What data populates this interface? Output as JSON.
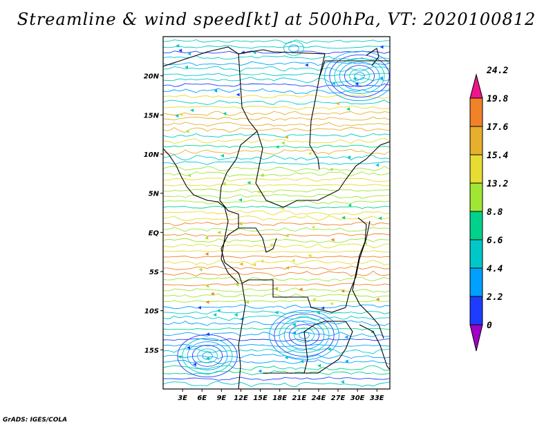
{
  "title": "Streamline & wind speed[kt] at 500hPa, VT: 2020100812",
  "credit": "GrADS: IGES/COLA",
  "map": {
    "lon_min": 0,
    "lon_max": 35,
    "lat_min": -20,
    "lat_max": 25,
    "lat_ticks": [
      {
        "value": 20,
        "label": "20N"
      },
      {
        "value": 15,
        "label": "15N"
      },
      {
        "value": 10,
        "label": "10N"
      },
      {
        "value": 5,
        "label": "5N"
      },
      {
        "value": 0,
        "label": "EQ"
      },
      {
        "value": -5,
        "label": "5S"
      },
      {
        "value": -10,
        "label": "10S"
      },
      {
        "value": -15,
        "label": "15S"
      }
    ],
    "lon_ticks": [
      {
        "value": 3,
        "label": "3E"
      },
      {
        "value": 6,
        "label": "6E"
      },
      {
        "value": 9,
        "label": "9E"
      },
      {
        "value": 12,
        "label": "12E"
      },
      {
        "value": 15,
        "label": "15E"
      },
      {
        "value": 18,
        "label": "18E"
      },
      {
        "value": 21,
        "label": "21E"
      },
      {
        "value": 24,
        "label": "24E"
      },
      {
        "value": 27,
        "label": "27E"
      },
      {
        "value": 30,
        "label": "30E"
      },
      {
        "value": 33,
        "label": "33E"
      }
    ]
  },
  "colorbar": {
    "levels": [
      "0",
      "2.2",
      "4.4",
      "6.6",
      "8.8",
      "13.2",
      "15.4",
      "17.6",
      "19.8",
      "24.2"
    ],
    "colors": [
      "#a000c8",
      "#1e3cff",
      "#00a0ff",
      "#00c8c8",
      "#00d28c",
      "#a0e632",
      "#e6dc32",
      "#e6af2d",
      "#f08228",
      "#f0148c"
    ]
  },
  "chart_data": {
    "type": "heatmap",
    "title": "Streamline & wind speed[kt] at 500hPa, VT: 2020100812",
    "x_ticks": [
      "3E",
      "6E",
      "9E",
      "12E",
      "15E",
      "18E",
      "21E",
      "24E",
      "27E",
      "30E",
      "33E"
    ],
    "y_ticks": [
      "20N",
      "15N",
      "10N",
      "5N",
      "EQ",
      "5S",
      "10S",
      "15S"
    ],
    "colorbar_levels": [
      0,
      2.2,
      4.4,
      6.6,
      8.8,
      13.2,
      15.4,
      17.6,
      19.8,
      24.2
    ]
  }
}
